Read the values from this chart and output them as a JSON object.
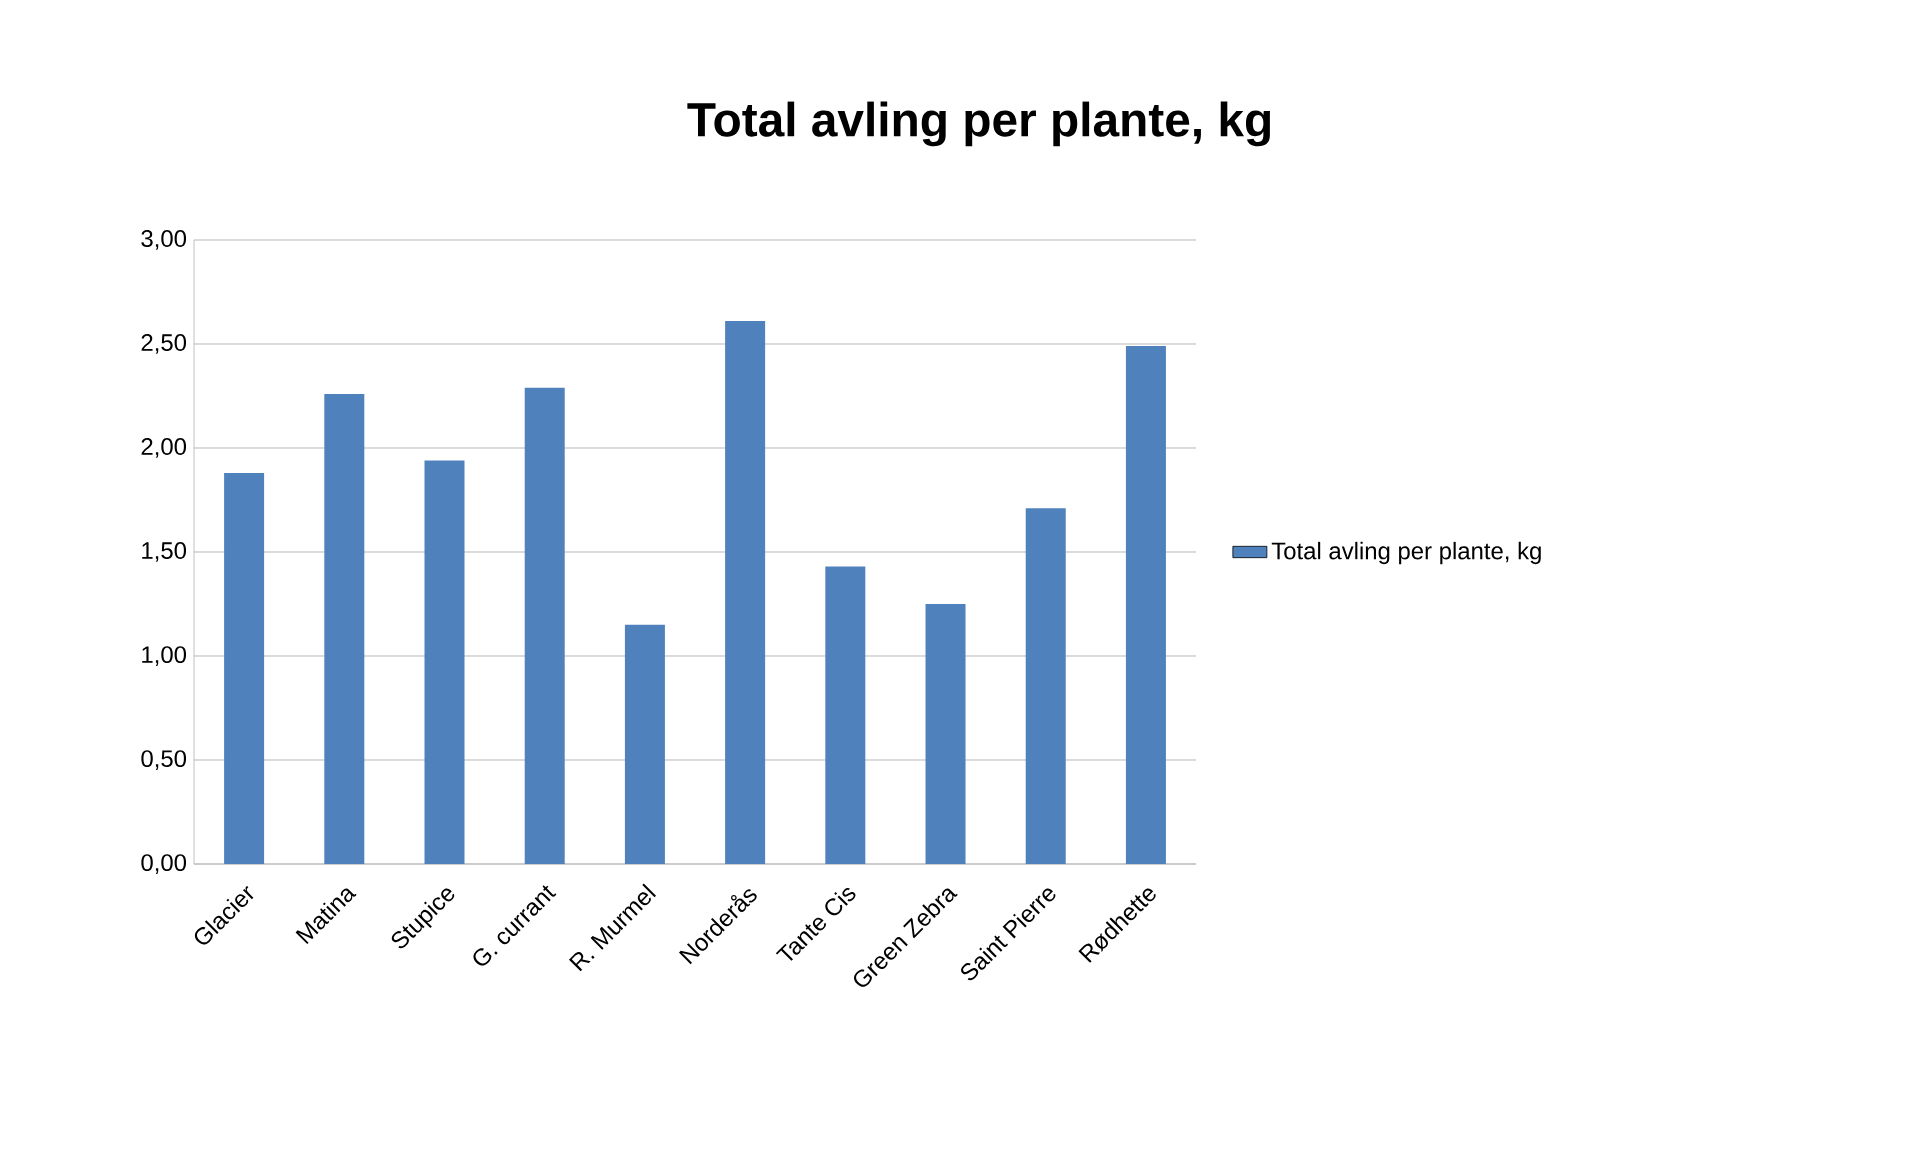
{
  "chart_data": {
    "type": "bar",
    "title": "Total avling per plante, kg",
    "categories": [
      "Glacier",
      "Matina",
      "Stupice",
      "G. currant",
      "R. Murmel",
      "Norderås",
      "Tante Cis",
      "Green Zebra",
      "Saint Pierre",
      "Rødhette"
    ],
    "series": [
      {
        "name": "Total avling per plante, kg",
        "color": "#4f81bd",
        "values": [
          1.88,
          2.26,
          1.94,
          2.29,
          1.15,
          2.61,
          1.43,
          1.25,
          1.71,
          2.49
        ]
      }
    ],
    "ylim": [
      0,
      3
    ],
    "yticks": [
      {
        "value": 0,
        "label": "0,00"
      },
      {
        "value": 0.5,
        "label": "0,50"
      },
      {
        "value": 1,
        "label": "1,00"
      },
      {
        "value": 1.5,
        "label": "1,50"
      },
      {
        "value": 2,
        "label": "2,00"
      },
      {
        "value": 2.5,
        "label": "2,50"
      },
      {
        "value": 3,
        "label": "3,00"
      }
    ],
    "grid": "y",
    "legend": "right"
  }
}
